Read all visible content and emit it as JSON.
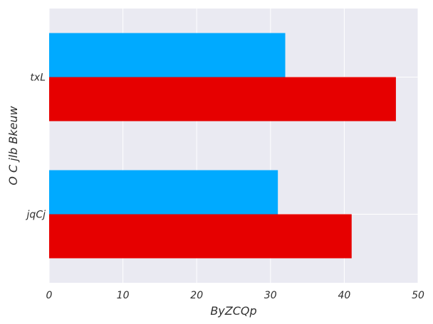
{
  "chart_data": {
    "type": "bar",
    "orientation": "horizontal",
    "title": "",
    "xlabel": "ByZCQp",
    "ylabel": "O C  jlb Bkeuw",
    "categories": [
      "txL",
      "jqCj"
    ],
    "series": [
      {
        "values": [
          32,
          31
        ],
        "color": "#00aaff"
      },
      {
        "values": [
          47,
          41
        ],
        "color": "#e60000"
      }
    ],
    "xlim": [
      0,
      50
    ],
    "xticks": [
      0,
      10,
      20,
      30,
      40,
      50
    ],
    "grid": true,
    "background": "#eaeaf2",
    "legend": "none"
  }
}
